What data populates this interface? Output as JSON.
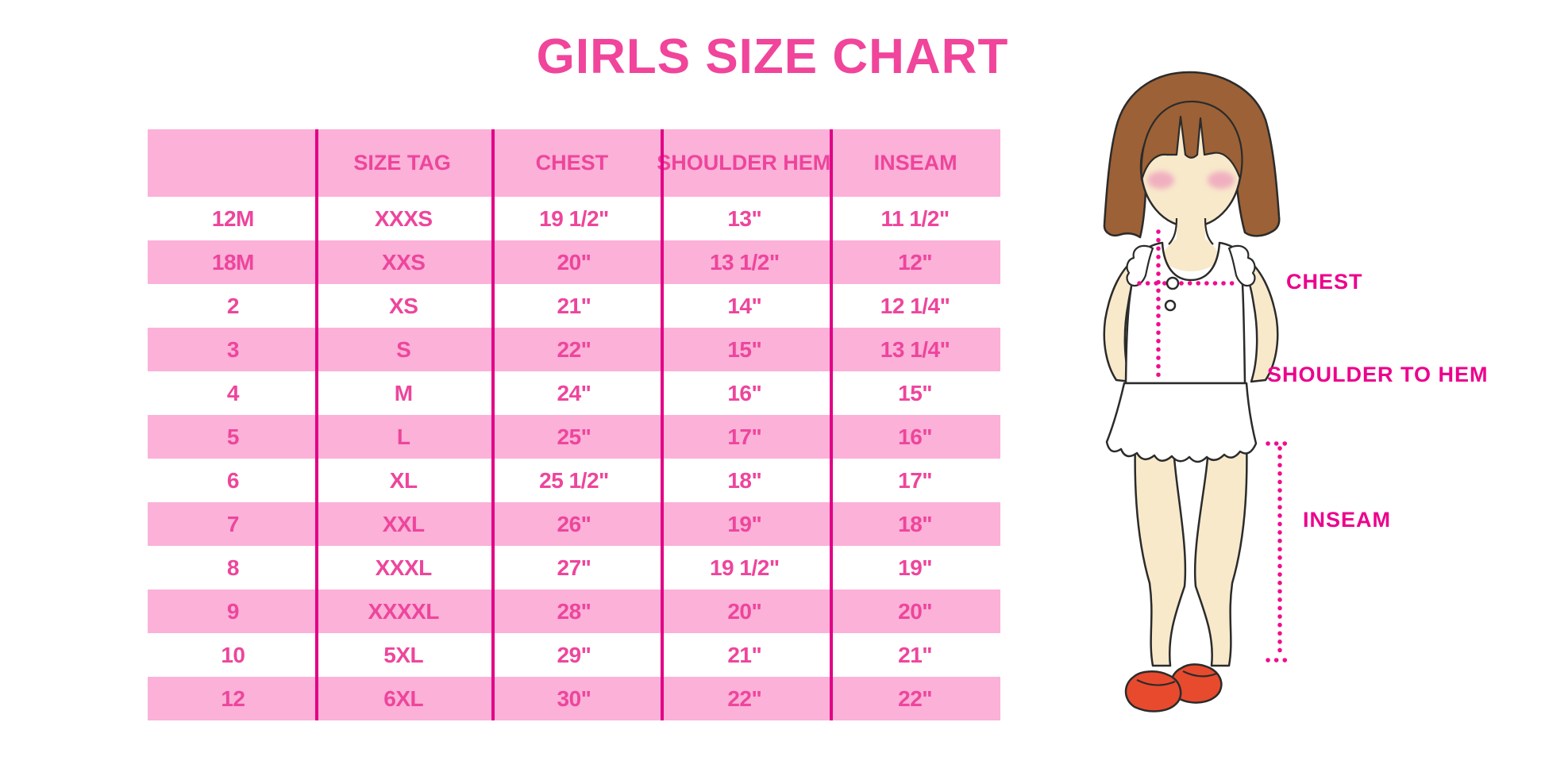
{
  "title": "GIRLS SIZE CHART",
  "table": {
    "headers": [
      "",
      "SIZE TAG",
      "CHEST",
      "SHOULDER HEM",
      "INSEAM"
    ],
    "rows": [
      [
        "12M",
        "XXXS",
        "19 1/2\"",
        "13\"",
        "11 1/2\""
      ],
      [
        "18M",
        "XXS",
        "20\"",
        "13 1/2\"",
        "12\""
      ],
      [
        "2",
        "XS",
        "21\"",
        "14\"",
        "12 1/4\""
      ],
      [
        "3",
        "S",
        "22\"",
        "15\"",
        "13 1/4\""
      ],
      [
        "4",
        "M",
        "24\"",
        "16\"",
        "15\""
      ],
      [
        "5",
        "L",
        "25\"",
        "17\"",
        "16\""
      ],
      [
        "6",
        "XL",
        "25 1/2\"",
        "18\"",
        "17\""
      ],
      [
        "7",
        "XXL",
        "26\"",
        "19\"",
        "18\""
      ],
      [
        "8",
        "XXXL",
        "27\"",
        "19 1/2\"",
        "19\""
      ],
      [
        "9",
        "XXXXL",
        "28\"",
        "20\"",
        "20\""
      ],
      [
        "10",
        "5XL",
        "29\"",
        "21\"",
        "21\""
      ],
      [
        "12",
        "6XL",
        "30\"",
        "22\"",
        "22\""
      ]
    ]
  },
  "figure": {
    "chest_label": "CHEST",
    "shoulder_to_hem_label": "SHOULDER TO HEM",
    "inseam_label": "INSEAM"
  },
  "chart_data": {
    "type": "table",
    "title": "GIRLS SIZE CHART",
    "columns": [
      "",
      "SIZE TAG",
      "CHEST",
      "SHOULDER HEM",
      "INSEAM"
    ],
    "rows": [
      [
        "12M",
        "XXXS",
        "19 1/2\"",
        "13\"",
        "11 1/2\""
      ],
      [
        "18M",
        "XXS",
        "20\"",
        "13 1/2\"",
        "12\""
      ],
      [
        "2",
        "XS",
        "21\"",
        "14\"",
        "12 1/4\""
      ],
      [
        "3",
        "S",
        "22\"",
        "15\"",
        "13 1/4\""
      ],
      [
        "4",
        "M",
        "24\"",
        "16\"",
        "15\""
      ],
      [
        "5",
        "L",
        "25\"",
        "17\"",
        "16\""
      ],
      [
        "6",
        "XL",
        "25 1/2\"",
        "18\"",
        "17\""
      ],
      [
        "7",
        "XXL",
        "26\"",
        "19\"",
        "18\""
      ],
      [
        "8",
        "XXXL",
        "27\"",
        "19 1/2\"",
        "19\""
      ],
      [
        "9",
        "XXXXL",
        "28\"",
        "20\"",
        "20\""
      ],
      [
        "10",
        "5XL",
        "29\"",
        "21\"",
        "21\""
      ],
      [
        "12",
        "6XL",
        "30\"",
        "22\"",
        "22\""
      ]
    ]
  },
  "colors": {
    "title_pink": "#F0459B",
    "table_text_pink": "#EE459C",
    "row_pink": "#FBB1D8",
    "divider_magenta": "#E20087",
    "label_magenta": "#EC008C",
    "dotted_line_pink": "#F10C8E",
    "hair_brown": "#9C6136",
    "skin": "#F8E9CB",
    "blush": "#EFA6BE",
    "shoe_red": "#E84A2D",
    "outline_dark": "#2B2B2B"
  }
}
